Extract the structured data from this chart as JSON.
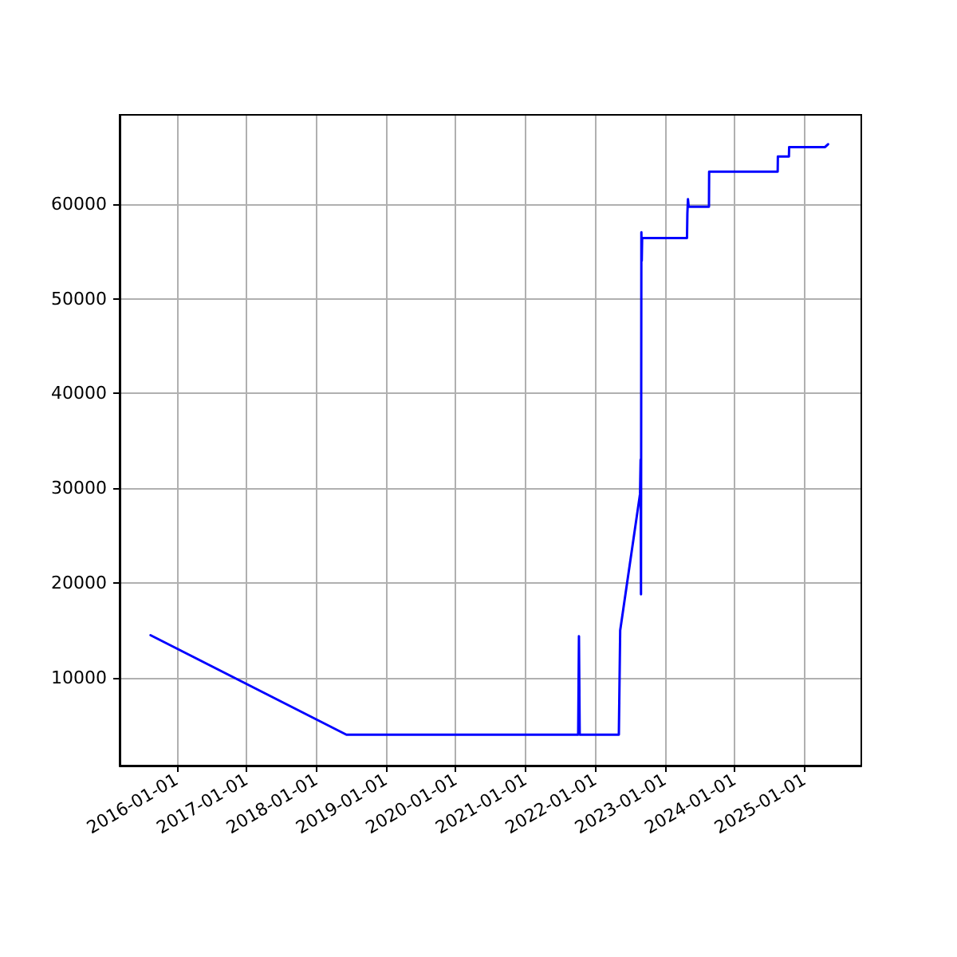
{
  "chart_data": {
    "type": "line",
    "x": [
      "2015-08-17",
      "2018-06-08",
      "2021-10-04",
      "2021-10-08",
      "2021-10-12",
      "2022-05-05",
      "2022-05-12",
      "2022-08-24",
      "2022-08-27",
      "2022-08-29",
      "2022-08-31",
      "2022-09-02",
      "2022-09-04",
      "2022-09-06",
      "2022-09-10",
      "2023-04-27",
      "2023-04-29",
      "2023-05-02",
      "2023-05-06",
      "2023-05-10",
      "2023-08-20",
      "2023-08-21",
      "2024-08-14",
      "2024-08-15",
      "2024-10-12",
      "2024-10-13",
      "2025-04-19",
      "2025-05-05"
    ],
    "series": [
      {
        "color": "#0000ff",
        "values": [
          14500,
          4000,
          4000,
          14400,
          4000,
          4000,
          15000,
          29400,
          33000,
          18800,
          57000,
          54000,
          56400,
          56400,
          56400,
          56400,
          59000,
          60500,
          59700,
          59700,
          59700,
          63400,
          63400,
          65000,
          65000,
          66000,
          66000,
          66300
        ]
      }
    ],
    "xlim": [
      "2015-03-08",
      "2025-10-26"
    ],
    "xticks": [
      "2016-01-01",
      "2017-01-01",
      "2018-01-01",
      "2019-01-01",
      "2020-01-01",
      "2021-01-01",
      "2022-01-01",
      "2023-01-01",
      "2024-01-01",
      "2025-01-01"
    ],
    "ylim": [
      740,
      69400
    ],
    "yticks": [
      10000,
      20000,
      30000,
      40000,
      50000,
      60000
    ],
    "grid": true,
    "marker": "none",
    "line_style": "solid"
  }
}
